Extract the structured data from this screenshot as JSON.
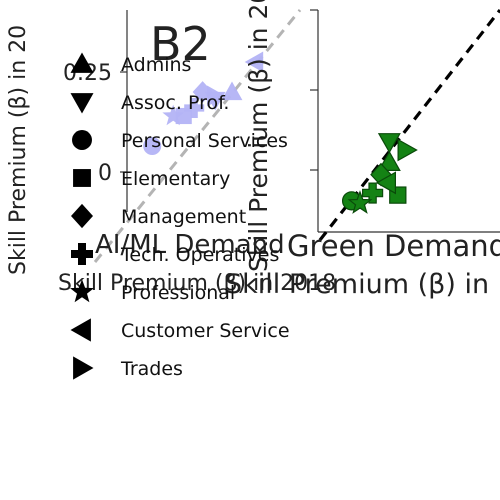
{
  "panel_label": "B2",
  "legend": [
    {
      "label": "Admins",
      "marker": "triangle-up"
    },
    {
      "label": "Assoc. Prof.",
      "marker": "triangle-down"
    },
    {
      "label": "Personal Services",
      "marker": "circle"
    },
    {
      "label": "Elementary",
      "marker": "square"
    },
    {
      "label": "Management",
      "marker": "diamond"
    },
    {
      "label": "Tech. Operatives",
      "marker": "plus"
    },
    {
      "label": "Professional",
      "marker": "star"
    },
    {
      "label": "Customer Service",
      "marker": "triangle-left"
    },
    {
      "label": "Trades",
      "marker": "triangle-right"
    }
  ],
  "colors": {
    "ai_points": "#b3b3f5",
    "green_points": "#148214",
    "green_edge": "#0a4a0a",
    "diagonal_ai": "#b4b4b4",
    "diagonal_green": "#000000",
    "legend_marker": "#000000"
  },
  "chart_data": [
    {
      "type": "scatter",
      "title": "AI/ML Demand",
      "xlabel": "Skill Premium (β) in 2018",
      "ylabel": "Skill Premium (β) in 20",
      "ylim": [
        -0.05,
        0.33
      ],
      "xlim": [
        -0.05,
        0.33
      ],
      "yticks": [
        0,
        0.25
      ],
      "ytick_labels": [
        "0",
        "0.25"
      ],
      "grid": false,
      "diagonal": "y=x dashed",
      "points": [
        {
          "group": "Admins",
          "marker": "triangle-up",
          "x": 0.2,
          "y": 0.2
        },
        {
          "group": "Assoc. Prof.",
          "marker": "triangle-down",
          "x": 0.16,
          "y": 0.18
        },
        {
          "group": "Personal Services",
          "marker": "circle",
          "x": 0.01,
          "y": 0.065
        },
        {
          "group": "Elementary",
          "marker": "square",
          "x": 0.085,
          "y": 0.14
        },
        {
          "group": "Management",
          "marker": "diamond",
          "x": 0.13,
          "y": 0.2
        },
        {
          "group": "Tech. Operatives",
          "marker": "plus",
          "x": 0.11,
          "y": 0.16
        },
        {
          "group": "Professional",
          "marker": "star",
          "x": 0.06,
          "y": 0.14
        },
        {
          "group": "Customer Service",
          "marker": "triangle-left",
          "x": 0.255,
          "y": 0.275
        },
        {
          "group": "Trades",
          "marker": "triangle-right",
          "x": 0.16,
          "y": 0.19
        }
      ]
    },
    {
      "type": "scatter",
      "title": "Green Demand",
      "xlabel": "Skill Premium (β) in",
      "ylabel": "Skill Premium (β) in 20",
      "xlim": [
        -0.05,
        0.33
      ],
      "ylim": [
        -0.05,
        0.33
      ],
      "grid": false,
      "diagonal": "y=x dashed",
      "points": [
        {
          "group": "Admins",
          "marker": "triangle-up",
          "x": 0.12,
          "y": 0.12
        },
        {
          "group": "Assoc. Prof.",
          "marker": "triangle-down",
          "x": 0.12,
          "y": 0.17
        },
        {
          "group": "Personal Services",
          "marker": "circle",
          "x": 0.03,
          "y": 0.026
        },
        {
          "group": "Elementary",
          "marker": "square",
          "x": 0.14,
          "y": 0.04
        },
        {
          "group": "Management",
          "marker": "diamond",
          "x": 0.1,
          "y": 0.09
        },
        {
          "group": "Tech. Operatives",
          "marker": "plus",
          "x": 0.08,
          "y": 0.045
        },
        {
          "group": "Professional",
          "marker": "star",
          "x": 0.05,
          "y": 0.02
        },
        {
          "group": "Customer Service",
          "marker": "triangle-left",
          "x": 0.115,
          "y": 0.07
        },
        {
          "group": "Trades",
          "marker": "triangle-right",
          "x": 0.16,
          "y": 0.15
        }
      ]
    }
  ]
}
